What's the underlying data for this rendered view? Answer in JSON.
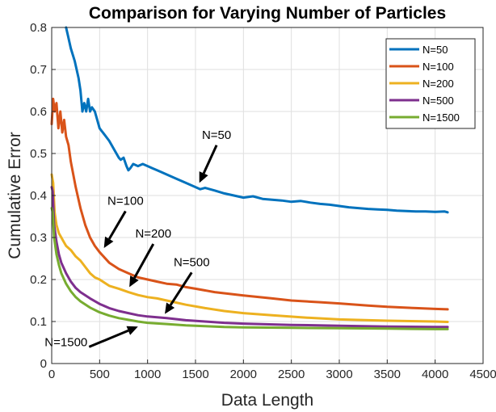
{
  "chart_data": {
    "type": "line",
    "title": "Comparison for Varying Number of Particles",
    "xlabel": "Data Length",
    "ylabel": "Cumulative Error",
    "xlim": [
      0,
      4500
    ],
    "ylim": [
      0,
      0.8
    ],
    "xticks": [
      0,
      500,
      1000,
      1500,
      2000,
      2500,
      3000,
      3500,
      4000,
      4500
    ],
    "yticks": [
      0,
      0.1,
      0.2,
      0.3,
      0.4,
      0.5,
      0.6,
      0.7,
      0.8
    ],
    "grid": true,
    "legend_position": "top-right",
    "series": [
      {
        "name": "N=50",
        "color": "#0072BD",
        "x": [
          150,
          170,
          200,
          240,
          280,
          300,
          320,
          340,
          360,
          380,
          400,
          420,
          450,
          500,
          550,
          600,
          650,
          700,
          720,
          750,
          780,
          800,
          820,
          850,
          900,
          950,
          1000,
          1050,
          1100,
          1150,
          1200,
          1300,
          1400,
          1500,
          1550,
          1600,
          1700,
          1800,
          1900,
          2000,
          2100,
          2200,
          2300,
          2400,
          2500,
          2600,
          2700,
          2800,
          2900,
          3000,
          3100,
          3200,
          3300,
          3400,
          3500,
          3600,
          3700,
          3800,
          3900,
          4000,
          4100,
          4130
        ],
        "y": [
          0.8,
          0.78,
          0.75,
          0.72,
          0.68,
          0.65,
          0.6,
          0.62,
          0.6,
          0.63,
          0.6,
          0.61,
          0.6,
          0.56,
          0.545,
          0.53,
          0.51,
          0.49,
          0.485,
          0.49,
          0.47,
          0.46,
          0.465,
          0.475,
          0.47,
          0.475,
          0.47,
          0.465,
          0.46,
          0.455,
          0.45,
          0.44,
          0.43,
          0.42,
          0.415,
          0.418,
          0.412,
          0.405,
          0.4,
          0.395,
          0.398,
          0.392,
          0.39,
          0.388,
          0.385,
          0.387,
          0.383,
          0.38,
          0.378,
          0.375,
          0.372,
          0.37,
          0.368,
          0.367,
          0.366,
          0.364,
          0.363,
          0.362,
          0.362,
          0.361,
          0.362,
          0.36
        ]
      },
      {
        "name": "N=100",
        "color": "#D95319",
        "x": [
          0,
          15,
          30,
          50,
          70,
          90,
          110,
          130,
          150,
          175,
          200,
          250,
          300,
          350,
          400,
          450,
          500,
          600,
          700,
          800,
          900,
          1000,
          1100,
          1200,
          1300,
          1400,
          1500,
          1700,
          2000,
          2300,
          2500,
          2800,
          3000,
          3300,
          3500,
          3800,
          4000,
          4130
        ],
        "y": [
          0.57,
          0.63,
          0.6,
          0.62,
          0.56,
          0.6,
          0.55,
          0.58,
          0.54,
          0.52,
          0.48,
          0.42,
          0.37,
          0.33,
          0.3,
          0.28,
          0.265,
          0.24,
          0.225,
          0.215,
          0.205,
          0.2,
          0.195,
          0.19,
          0.188,
          0.182,
          0.178,
          0.17,
          0.162,
          0.155,
          0.15,
          0.146,
          0.143,
          0.138,
          0.135,
          0.132,
          0.13,
          0.129
        ]
      },
      {
        "name": "N=200",
        "color": "#EDB120",
        "x": [
          0,
          15,
          30,
          50,
          75,
          100,
          125,
          150,
          200,
          250,
          300,
          350,
          400,
          450,
          500,
          600,
          700,
          800,
          900,
          1000,
          1100,
          1200,
          1400,
          1600,
          1800,
          2000,
          2300,
          2600,
          3000,
          3500,
          4000,
          4130
        ],
        "y": [
          0.45,
          0.43,
          0.36,
          0.33,
          0.31,
          0.3,
          0.29,
          0.28,
          0.27,
          0.255,
          0.245,
          0.23,
          0.215,
          0.205,
          0.2,
          0.185,
          0.178,
          0.17,
          0.163,
          0.158,
          0.155,
          0.15,
          0.14,
          0.132,
          0.125,
          0.12,
          0.115,
          0.11,
          0.105,
          0.102,
          0.1,
          0.099
        ]
      },
      {
        "name": "N=500",
        "color": "#7E2F8E",
        "x": [
          0,
          10,
          25,
          50,
          75,
          100,
          150,
          200,
          250,
          300,
          400,
          500,
          600,
          700,
          800,
          900,
          1000,
          1200,
          1400,
          1600,
          1800,
          2000,
          2500,
          3000,
          3500,
          4000,
          4130
        ],
        "y": [
          0.42,
          0.41,
          0.33,
          0.29,
          0.26,
          0.24,
          0.215,
          0.195,
          0.18,
          0.17,
          0.155,
          0.142,
          0.132,
          0.125,
          0.12,
          0.115,
          0.112,
          0.108,
          0.103,
          0.1,
          0.097,
          0.095,
          0.092,
          0.09,
          0.088,
          0.087,
          0.087
        ]
      },
      {
        "name": "N=1500",
        "color": "#77AC30",
        "x": [
          0,
          10,
          25,
          50,
          75,
          100,
          150,
          200,
          250,
          300,
          400,
          500,
          600,
          700,
          800,
          900,
          1000,
          1200,
          1400,
          1600,
          1800,
          2000,
          2500,
          3000,
          3500,
          4000,
          4130
        ],
        "y": [
          0.37,
          0.36,
          0.3,
          0.26,
          0.235,
          0.215,
          0.19,
          0.172,
          0.158,
          0.148,
          0.133,
          0.122,
          0.114,
          0.108,
          0.104,
          0.1,
          0.097,
          0.094,
          0.091,
          0.089,
          0.087,
          0.086,
          0.085,
          0.084,
          0.083,
          0.082,
          0.082
        ]
      }
    ],
    "annotations": [
      {
        "text": "N=50",
        "text_x": 1720,
        "text_y": 0.535,
        "tip_x": 1540,
        "tip_y": 0.43
      },
      {
        "text": "N=100",
        "text_x": 770,
        "text_y": 0.378,
        "tip_x": 545,
        "tip_y": 0.275
      },
      {
        "text": "N=200",
        "text_x": 1060,
        "text_y": 0.3,
        "tip_x": 810,
        "tip_y": 0.182
      },
      {
        "text": "N=500",
        "text_x": 1460,
        "text_y": 0.232,
        "tip_x": 1180,
        "tip_y": 0.118
      },
      {
        "text": "N=1500",
        "text_x": 390,
        "text_y": 0.055,
        "tip_x": 900,
        "tip_y": 0.088
      }
    ]
  }
}
